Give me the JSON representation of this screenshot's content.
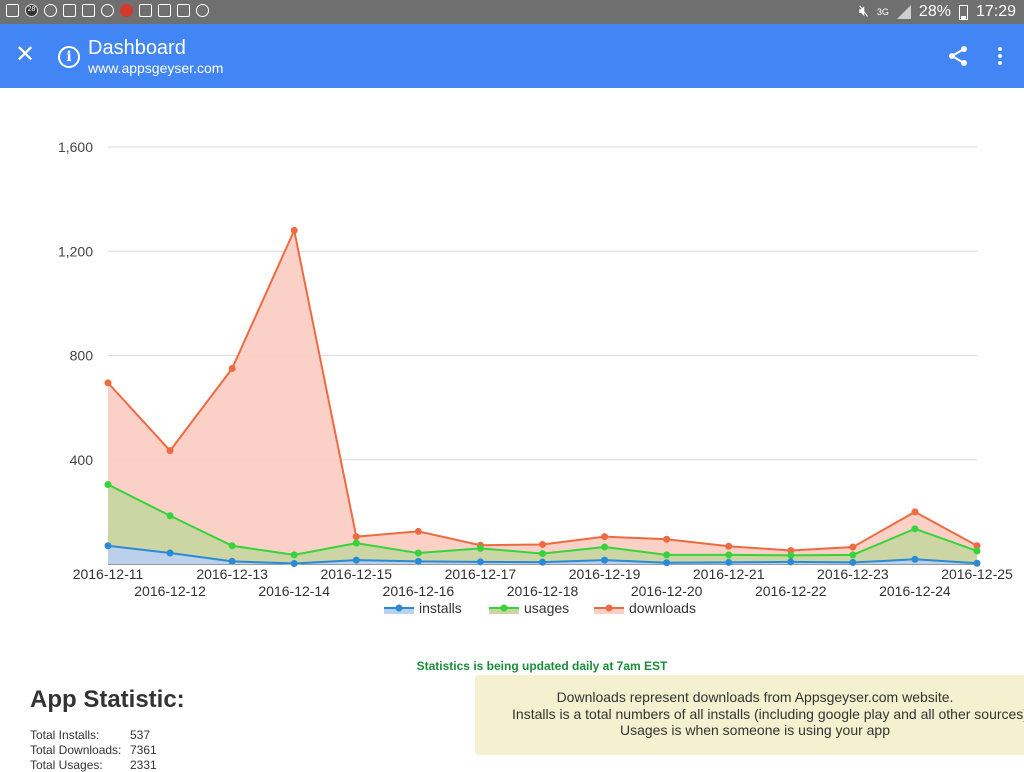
{
  "status_bar": {
    "badge_text": "28",
    "network_label": "3G",
    "battery": "28%",
    "time": "17:29"
  },
  "app_bar": {
    "title": "Dashboard",
    "subtitle": "www.appsgeyser.com",
    "icons": [
      "close-icon",
      "info-icon",
      "share-icon",
      "more-vert-icon"
    ]
  },
  "chart_data": {
    "type": "area",
    "x": [
      "2016-12-11",
      "2016-12-12",
      "2016-12-13",
      "2016-12-14",
      "2016-12-15",
      "2016-12-16",
      "2016-12-17",
      "2016-12-18",
      "2016-12-19",
      "2016-12-20",
      "2016-12-21",
      "2016-12-22",
      "2016-12-23",
      "2016-12-24",
      "2016-12-25"
    ],
    "series": [
      {
        "name": "downloads",
        "color": "#ee6b42",
        "fill": "#fbcfc4",
        "values": [
          695,
          435,
          750,
          1280,
          105,
          125,
          72,
          75,
          105,
          95,
          68,
          52,
          65,
          200,
          70
        ]
      },
      {
        "name": "usages",
        "color": "#36d33a",
        "fill": "#c9d6a2",
        "values": [
          305,
          185,
          70,
          35,
          80,
          42,
          60,
          40,
          65,
          35,
          35,
          33,
          35,
          135,
          50
        ]
      },
      {
        "name": "installs",
        "color": "#2a8ad4",
        "fill": "#b9d0ef",
        "values": [
          70,
          42,
          10,
          2,
          15,
          10,
          8,
          7,
          15,
          5,
          6,
          8,
          6,
          18,
          3
        ]
      }
    ],
    "yticks": [
      0,
      400,
      800,
      1200,
      1600
    ],
    "ytick_labels": [
      "",
      "400",
      "800",
      "1,200",
      "1,600"
    ],
    "ylim": [
      0,
      1600
    ],
    "legend_order": [
      "installs",
      "usages",
      "downloads"
    ],
    "legend_position": "bottom",
    "grid": true
  },
  "notice": "Statistics is being updated daily at 7am EST",
  "stats": {
    "title": "App Statistic:",
    "rows": [
      {
        "label": "Total Installs:",
        "value": "537"
      },
      {
        "label": "Total Downloads:",
        "value": "7361"
      },
      {
        "label": "Total Usages:",
        "value": "2331"
      }
    ]
  },
  "info_box": {
    "lines": [
      "Downloads represent downloads from Appsgeyser.com website.",
      "Installs is a total numbers of all installs (including google play and all other sources)",
      "Usages is when someone is using your app"
    ]
  }
}
